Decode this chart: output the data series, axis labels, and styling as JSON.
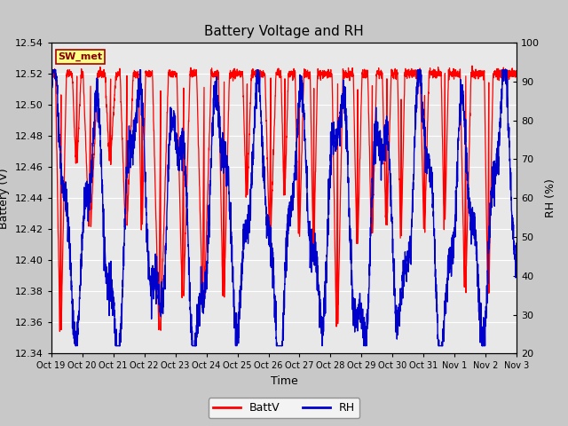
{
  "title": "Battery Voltage and RH",
  "xlabel": "Time",
  "ylabel_left": "Battery (V)",
  "ylabel_right": "RH (%)",
  "ylim_left": [
    12.34,
    12.54
  ],
  "ylim_right": [
    20,
    100
  ],
  "yticks_left": [
    12.34,
    12.36,
    12.38,
    12.4,
    12.42,
    12.44,
    12.46,
    12.48,
    12.5,
    12.52,
    12.54
  ],
  "yticks_right": [
    20,
    30,
    40,
    50,
    60,
    70,
    80,
    90,
    100
  ],
  "xtick_labels": [
    "Oct 19",
    "Oct 20",
    "Oct 21",
    "Oct 22",
    "Oct 23",
    "Oct 24",
    "Oct 25",
    "Oct 26",
    "Oct 27",
    "Oct 28",
    "Oct 29",
    "Oct 30",
    "Oct 31",
    "Nov 1",
    "Nov 2",
    "Nov 3"
  ],
  "batt_color": "#FF0000",
  "rh_color": "#0000CC",
  "outer_bg": "#C8C8C8",
  "plot_bg": "#E8E8E8",
  "grid_color": "#FFFFFF",
  "legend_batt": "BattV",
  "legend_rh": "RH",
  "annotation_text": "SW_met",
  "annotation_bg": "#FFFF88",
  "annotation_border": "#AA0000",
  "title_fontsize": 11,
  "axis_label_fontsize": 9,
  "tick_fontsize": 8
}
